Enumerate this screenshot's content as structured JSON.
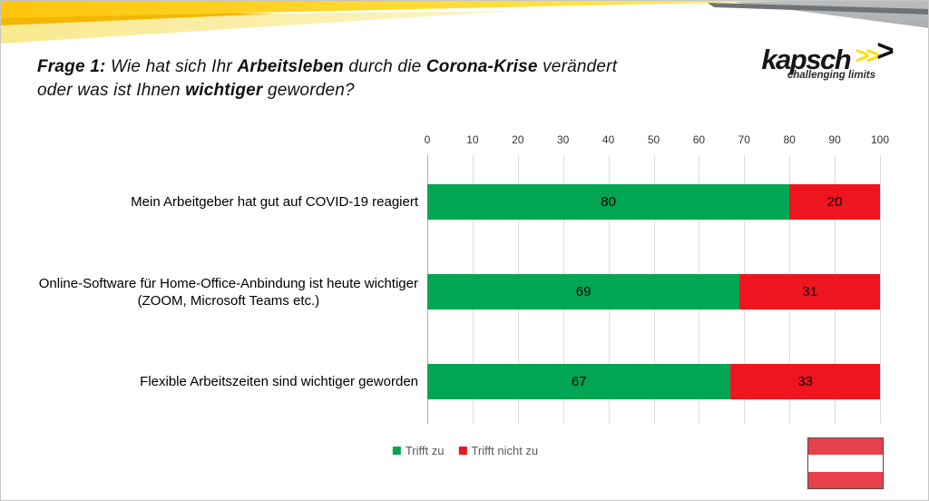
{
  "slide": {
    "title_lines": [
      [
        {
          "t": "Frage 1:",
          "b": true
        },
        {
          "t": " Wie hat sich Ihr ",
          "b": false
        },
        {
          "t": "Arbeitsleben",
          "b": true
        },
        {
          "t": " durch die ",
          "b": false
        },
        {
          "t": "Corona-Krise",
          "b": true
        },
        {
          "t": " verändert",
          "b": false
        }
      ],
      [
        {
          "t": "oder was ist Ihnen ",
          "b": false
        },
        {
          "t": "wichtiger",
          "b": true
        },
        {
          "t": " geworden?",
          "b": false
        }
      ]
    ]
  },
  "logo": {
    "brand": "kapsch",
    "tagline": "challenging limits",
    "chevrons": [
      {
        "glyph": ">",
        "color": "#ffdd00",
        "big": false
      },
      {
        "glyph": ">",
        "color": "#ffdd00",
        "big": false
      },
      {
        "glyph": ">",
        "color": "#141414",
        "big": true
      }
    ]
  },
  "chart_data": {
    "type": "bar",
    "orientation": "horizontal",
    "stacked": true,
    "categories": [
      [
        "Mein Arbeitgeber hat gut auf COVID-19 reagiert"
      ],
      [
        "Online-Software für Home-Office-Anbindung ist heute wichtiger",
        "(ZOOM, Microsoft Teams etc.)"
      ],
      [
        "Flexible Arbeitszeiten sind wichtiger geworden"
      ]
    ],
    "series": [
      {
        "name": "Trifft zu",
        "color": "#00a651",
        "values": [
          80,
          69,
          67
        ]
      },
      {
        "name": "Trifft nicht zu",
        "color": "#ee151f",
        "values": [
          20,
          31,
          33
        ]
      }
    ],
    "x_axis": {
      "position": "top",
      "min": 0,
      "max": 100,
      "tick_step": 10,
      "ticks": [
        0,
        10,
        20,
        30,
        40,
        50,
        60,
        70,
        80,
        90,
        100
      ]
    },
    "grid": true,
    "data_labels": true,
    "legend_position": "bottom"
  },
  "flag": {
    "country": "austria",
    "stripe_colors": [
      "#e8414b",
      "#ffffff",
      "#e8414b"
    ]
  }
}
